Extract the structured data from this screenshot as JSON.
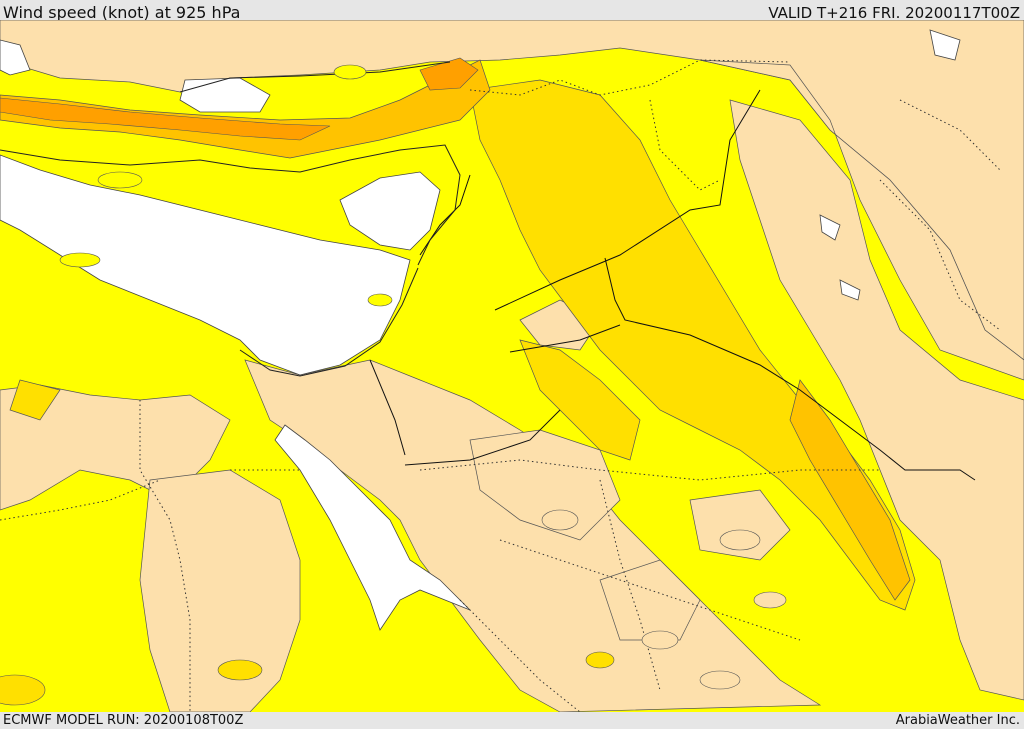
{
  "header": {
    "title": "Wind speed (knot) at 925 hPa",
    "valid": "VALID T+216 FRI. 20200117T00Z"
  },
  "footer": {
    "model_run": "ECMWF MODEL RUN: 20200108T00Z",
    "credit": "ArabiaWeather Inc."
  },
  "map": {
    "parameter": "wind speed",
    "level_hpa": 925,
    "unit": "knot",
    "color_levels": [
      {
        "color": "#ffffff"
      },
      {
        "color": "#fde0ac"
      },
      {
        "color": "#ffff00"
      },
      {
        "color": "#ffe000"
      },
      {
        "color": "#ffc300"
      },
      {
        "color": "#ffa000"
      }
    ]
  }
}
